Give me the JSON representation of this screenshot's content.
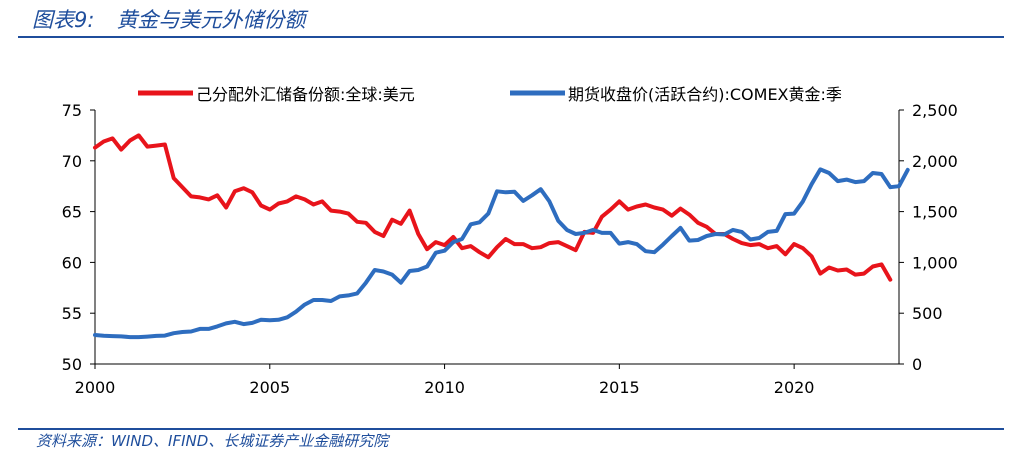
{
  "figure": {
    "number": "图表9:",
    "title": "黄金与美元外储份额",
    "source": "资料来源：WIND、IFIND、长城证券产业金融研究院"
  },
  "chart_data": {
    "type": "line",
    "legend_position": "top",
    "grid": false,
    "x_ticks": [
      "2000",
      "2005",
      "2010",
      "2015",
      "2020"
    ],
    "x_range": [
      2000,
      2023
    ],
    "y_left": {
      "ticks": [
        "50",
        "55",
        "60",
        "65",
        "70",
        "75"
      ],
      "range": [
        50,
        75
      ]
    },
    "y_right": {
      "ticks": [
        "0",
        "500",
        "1,000",
        "1,500",
        "2,000",
        "2,500"
      ],
      "range": [
        0,
        2500
      ]
    },
    "series": [
      {
        "name": "己分配外汇储备份额:全球:美元",
        "color": "#e8141b",
        "axis": "left",
        "points": [
          [
            2000.0,
            71.3
          ],
          [
            2000.25,
            71.9
          ],
          [
            2000.5,
            72.2
          ],
          [
            2000.75,
            71.1
          ],
          [
            2001.0,
            72.0
          ],
          [
            2001.25,
            72.5
          ],
          [
            2001.5,
            71.4
          ],
          [
            2001.75,
            71.5
          ],
          [
            2002.0,
            71.6
          ],
          [
            2002.25,
            68.3
          ],
          [
            2002.5,
            67.4
          ],
          [
            2002.75,
            66.5
          ],
          [
            2003.0,
            66.4
          ],
          [
            2003.25,
            66.2
          ],
          [
            2003.5,
            66.6
          ],
          [
            2003.75,
            65.4
          ],
          [
            2004.0,
            67.0
          ],
          [
            2004.25,
            67.3
          ],
          [
            2004.5,
            66.9
          ],
          [
            2004.75,
            65.6
          ],
          [
            2005.0,
            65.2
          ],
          [
            2005.25,
            65.8
          ],
          [
            2005.5,
            66.0
          ],
          [
            2005.75,
            66.5
          ],
          [
            2006.0,
            66.2
          ],
          [
            2006.25,
            65.7
          ],
          [
            2006.5,
            66.0
          ],
          [
            2006.75,
            65.1
          ],
          [
            2007.0,
            65.0
          ],
          [
            2007.25,
            64.8
          ],
          [
            2007.5,
            64.0
          ],
          [
            2007.75,
            63.9
          ],
          [
            2008.0,
            63.0
          ],
          [
            2008.25,
            62.6
          ],
          [
            2008.5,
            64.2
          ],
          [
            2008.75,
            63.8
          ],
          [
            2009.0,
            65.1
          ],
          [
            2009.25,
            62.8
          ],
          [
            2009.5,
            61.3
          ],
          [
            2009.75,
            62.0
          ],
          [
            2010.0,
            61.7
          ],
          [
            2010.25,
            62.5
          ],
          [
            2010.5,
            61.4
          ],
          [
            2010.75,
            61.6
          ],
          [
            2011.0,
            61.0
          ],
          [
            2011.25,
            60.5
          ],
          [
            2011.5,
            61.5
          ],
          [
            2011.75,
            62.3
          ],
          [
            2012.0,
            61.8
          ],
          [
            2012.25,
            61.8
          ],
          [
            2012.5,
            61.4
          ],
          [
            2012.75,
            61.5
          ],
          [
            2013.0,
            61.9
          ],
          [
            2013.25,
            62.0
          ],
          [
            2013.5,
            61.6
          ],
          [
            2013.75,
            61.2
          ],
          [
            2014.0,
            63.0
          ],
          [
            2014.25,
            62.9
          ],
          [
            2014.5,
            64.5
          ],
          [
            2014.75,
            65.2
          ],
          [
            2015.0,
            66.0
          ],
          [
            2015.25,
            65.2
          ],
          [
            2015.5,
            65.5
          ],
          [
            2015.75,
            65.7
          ],
          [
            2016.0,
            65.4
          ],
          [
            2016.25,
            65.2
          ],
          [
            2016.5,
            64.6
          ],
          [
            2016.75,
            65.3
          ],
          [
            2017.0,
            64.7
          ],
          [
            2017.25,
            63.9
          ],
          [
            2017.5,
            63.5
          ],
          [
            2017.75,
            62.8
          ],
          [
            2018.0,
            62.8
          ],
          [
            2018.25,
            62.3
          ],
          [
            2018.5,
            61.9
          ],
          [
            2018.75,
            61.7
          ],
          [
            2019.0,
            61.8
          ],
          [
            2019.25,
            61.4
          ],
          [
            2019.5,
            61.6
          ],
          [
            2019.75,
            60.8
          ],
          [
            2020.0,
            61.8
          ],
          [
            2020.25,
            61.4
          ],
          [
            2020.5,
            60.6
          ],
          [
            2020.75,
            58.9
          ],
          [
            2021.0,
            59.5
          ],
          [
            2021.25,
            59.2
          ],
          [
            2021.5,
            59.3
          ],
          [
            2021.75,
            58.8
          ],
          [
            2022.0,
            58.9
          ],
          [
            2022.25,
            59.6
          ],
          [
            2022.5,
            59.8
          ],
          [
            2022.75,
            58.3
          ]
        ]
      },
      {
        "name": "期货收盘价(活跃合约):COMEX黄金:季",
        "color": "#2e6dbf",
        "axis": "right",
        "points": [
          [
            2000.0,
            285
          ],
          [
            2000.25,
            278
          ],
          [
            2000.5,
            275
          ],
          [
            2000.75,
            272
          ],
          [
            2001.0,
            265
          ],
          [
            2001.25,
            265
          ],
          [
            2001.5,
            270
          ],
          [
            2001.75,
            277
          ],
          [
            2002.0,
            280
          ],
          [
            2002.25,
            303
          ],
          [
            2002.5,
            315
          ],
          [
            2002.75,
            320
          ],
          [
            2003.0,
            345
          ],
          [
            2003.25,
            345
          ],
          [
            2003.5,
            370
          ],
          [
            2003.75,
            400
          ],
          [
            2004.0,
            415
          ],
          [
            2004.25,
            393
          ],
          [
            2004.5,
            405
          ],
          [
            2004.75,
            435
          ],
          [
            2005.0,
            430
          ],
          [
            2005.25,
            435
          ],
          [
            2005.5,
            460
          ],
          [
            2005.75,
            515
          ],
          [
            2006.0,
            585
          ],
          [
            2006.25,
            630
          ],
          [
            2006.5,
            630
          ],
          [
            2006.75,
            620
          ],
          [
            2007.0,
            665
          ],
          [
            2007.25,
            675
          ],
          [
            2007.5,
            695
          ],
          [
            2007.75,
            800
          ],
          [
            2008.0,
            925
          ],
          [
            2008.25,
            910
          ],
          [
            2008.5,
            880
          ],
          [
            2008.75,
            800
          ],
          [
            2009.0,
            915
          ],
          [
            2009.25,
            925
          ],
          [
            2009.5,
            960
          ],
          [
            2009.75,
            1095
          ],
          [
            2010.0,
            1115
          ],
          [
            2010.25,
            1200
          ],
          [
            2010.5,
            1230
          ],
          [
            2010.75,
            1375
          ],
          [
            2011.0,
            1395
          ],
          [
            2011.25,
            1480
          ],
          [
            2011.5,
            1700
          ],
          [
            2011.75,
            1690
          ],
          [
            2012.0,
            1695
          ],
          [
            2012.25,
            1605
          ],
          [
            2012.5,
            1660
          ],
          [
            2012.75,
            1720
          ],
          [
            2013.0,
            1600
          ],
          [
            2013.25,
            1410
          ],
          [
            2013.5,
            1320
          ],
          [
            2013.75,
            1280
          ],
          [
            2014.0,
            1290
          ],
          [
            2014.25,
            1320
          ],
          [
            2014.5,
            1290
          ],
          [
            2014.75,
            1290
          ],
          [
            2015.0,
            1185
          ],
          [
            2015.25,
            1200
          ],
          [
            2015.5,
            1180
          ],
          [
            2015.75,
            1110
          ],
          [
            2016.0,
            1100
          ],
          [
            2016.25,
            1175
          ],
          [
            2016.5,
            1260
          ],
          [
            2016.75,
            1340
          ],
          [
            2017.0,
            1215
          ],
          [
            2017.25,
            1220
          ],
          [
            2017.5,
            1260
          ],
          [
            2017.75,
            1280
          ],
          [
            2018.0,
            1275
          ],
          [
            2018.25,
            1320
          ],
          [
            2018.5,
            1300
          ],
          [
            2018.75,
            1225
          ],
          [
            2019.0,
            1240
          ],
          [
            2019.25,
            1300
          ],
          [
            2019.5,
            1310
          ],
          [
            2019.75,
            1475
          ],
          [
            2020.0,
            1480
          ],
          [
            2020.25,
            1600
          ],
          [
            2020.5,
            1770
          ],
          [
            2020.75,
            1915
          ],
          [
            2021.0,
            1880
          ],
          [
            2021.25,
            1800
          ],
          [
            2021.5,
            1815
          ],
          [
            2021.75,
            1790
          ],
          [
            2022.0,
            1800
          ],
          [
            2022.25,
            1880
          ],
          [
            2022.5,
            1870
          ],
          [
            2022.75,
            1740
          ],
          [
            2023.0,
            1750
          ],
          [
            2023.25,
            1910
          ]
        ]
      }
    ]
  }
}
